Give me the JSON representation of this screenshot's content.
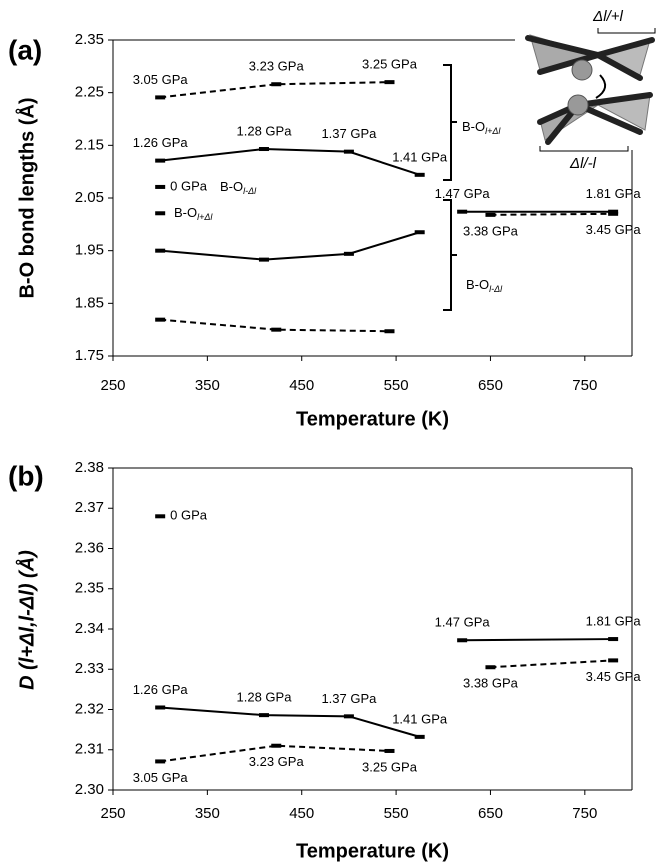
{
  "chart_data": [
    {
      "type": "line",
      "panel_label": "(a)",
      "ylabel": "B-O bond lengths (Å)",
      "xlabel": "Temperature (K)",
      "xlim": [
        250,
        800
      ],
      "xticks": [
        250,
        350,
        450,
        550,
        650,
        750
      ],
      "ylim": [
        1.75,
        2.35
      ],
      "yticks": [
        1.75,
        1.85,
        1.95,
        2.05,
        2.15,
        2.25,
        2.35
      ],
      "series": [
        {
          "color": "#000000",
          "dashed": true,
          "x": [
            300,
            423,
            543
          ],
          "values": [
            2.241,
            2.266,
            2.27
          ],
          "labels": [
            "3.05 GPa",
            "3.23 GPa",
            "3.25 GPa"
          ]
        },
        {
          "color": "#000000",
          "dashed": false,
          "x": [
            300,
            410,
            500,
            575
          ],
          "values": [
            2.121,
            2.143,
            2.138,
            2.094
          ],
          "labels": [
            "1.26 GPa",
            "1.28 GPa",
            "1.37 GPa",
            "1.41 GPa"
          ]
        },
        {
          "color": "#000000",
          "dashed": false,
          "x": [
            300
          ],
          "values": [
            2.071
          ],
          "labels": [
            "0 GPa"
          ]
        },
        {
          "color": "#000000",
          "dashed": false,
          "x": [
            300
          ],
          "values": [
            2.021
          ]
        },
        {
          "color": "#000000",
          "dashed": false,
          "x": [
            300,
            410,
            500,
            575
          ],
          "values": [
            1.95,
            1.933,
            1.944,
            1.985
          ]
        },
        {
          "color": "#000000",
          "dashed": true,
          "x": [
            300,
            423,
            543
          ],
          "values": [
            1.819,
            1.8,
            1.797
          ]
        },
        {
          "color": "#000000",
          "dashed": false,
          "x": [
            620,
            780
          ],
          "values": [
            2.024,
            2.024
          ],
          "labels": [
            "1.47 GPa",
            "1.81 GPa"
          ]
        },
        {
          "color": "#000000",
          "dashed": true,
          "x": [
            650,
            780
          ],
          "values": [
            2.018,
            2.02
          ],
          "labels": [
            "3.38 GPa",
            "3.45 GPa"
          ]
        }
      ],
      "annotations": [
        {
          "text": "B-O",
          "sub": "l+Δl"
        },
        {
          "text": "B-O",
          "sub": "l-Δl"
        },
        {
          "text": "B-O",
          "sub": "l-Δl"
        },
        {
          "text": "B-O",
          "sub": "l+Δl"
        }
      ],
      "inset": {
        "top_label": "Δl/+l",
        "bottom_label": "Δl/-l"
      }
    },
    {
      "type": "line",
      "panel_label": "(b)",
      "ylabel": "D (l+Δl,l-Δl) (Å)",
      "xlabel": "Temperature (K)",
      "xlim": [
        250,
        800
      ],
      "xticks": [
        250,
        350,
        450,
        550,
        650,
        750
      ],
      "ylim": [
        2.3,
        2.38
      ],
      "yticks": [
        {
          "value": 2.3,
          "label": "2.30"
        },
        2.31,
        2.32,
        2.33,
        2.34,
        2.35,
        2.36,
        2.37,
        2.38
      ],
      "series": [
        {
          "color": "#000000",
          "dashed": false,
          "x": [
            300,
            410,
            500,
            575
          ],
          "values": [
            2.3205,
            2.3186,
            2.3183,
            2.3132
          ],
          "labels": [
            "1.26 GPa",
            "1.28 GPa",
            "1.37 GPa",
            "1.41 GPa"
          ]
        },
        {
          "color": "#000000",
          "dashed": true,
          "x": [
            300,
            423,
            543
          ],
          "values": [
            2.3071,
            2.311,
            2.3097
          ],
          "labels": [
            "3.05 GPa",
            "3.23 GPa",
            "3.25 GPa"
          ]
        },
        {
          "color": "#000000",
          "dashed": false,
          "x": [
            300
          ],
          "values": [
            2.368
          ],
          "labels": [
            "0 GPa"
          ]
        },
        {
          "color": "#000000",
          "dashed": false,
          "x": [
            620,
            780
          ],
          "values": [
            2.3372,
            2.3375
          ],
          "labels": [
            "1.47 GPa",
            "1.81 GPa"
          ]
        },
        {
          "color": "#000000",
          "dashed": true,
          "x": [
            650,
            780
          ],
          "values": [
            2.3305,
            2.3322
          ],
          "labels": [
            "3.38 GPa",
            "3.45 GPa"
          ]
        }
      ]
    }
  ]
}
